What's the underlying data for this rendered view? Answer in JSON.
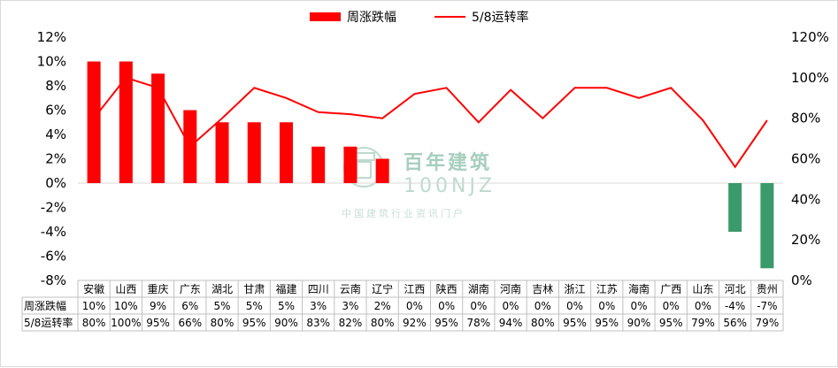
{
  "chart_data": {
    "type": "bar",
    "legend_position": "top-center",
    "grid": false,
    "categories": [
      "安徽",
      "山西",
      "重庆",
      "广东",
      "湖北",
      "甘肃",
      "福建",
      "四川",
      "云南",
      "辽宁",
      "江西",
      "陕西",
      "湖南",
      "河南",
      "吉林",
      "浙江",
      "江苏",
      "海南",
      "广西",
      "山东",
      "河北",
      "贵州"
    ],
    "series": [
      {
        "name": "周涨跌幅",
        "type": "bar",
        "axis": "left",
        "values": [
          10,
          10,
          9,
          6,
          5,
          5,
          5,
          3,
          3,
          2,
          0,
          0,
          0,
          0,
          0,
          0,
          0,
          0,
          0,
          0,
          -4,
          -7
        ],
        "table_labels": [
          "10%",
          "10%",
          "9%",
          "6%",
          "5%",
          "5%",
          "5%",
          "3%",
          "3%",
          "2%",
          "0%",
          "0%",
          "0%",
          "0%",
          "0%",
          "0%",
          "0%",
          "0%",
          "0%",
          "0%",
          "-4%",
          "-7%"
        ],
        "color_positive": "#ff0000",
        "color_negative": "#3a9a6a"
      },
      {
        "name": "5/8运转率",
        "type": "line",
        "axis": "right",
        "values": [
          80,
          100,
          95,
          66,
          80,
          95,
          90,
          83,
          82,
          80,
          92,
          95,
          78,
          94,
          80,
          95,
          95,
          90,
          95,
          79,
          56,
          79
        ],
        "table_labels": [
          "80%",
          "100%",
          "95%",
          "66%",
          "80%",
          "95%",
          "90%",
          "83%",
          "82%",
          "80%",
          "92%",
          "95%",
          "78%",
          "94%",
          "80%",
          "95%",
          "95%",
          "90%",
          "95%",
          "79%",
          "56%",
          "79%"
        ],
        "color": "#ff0000"
      }
    ],
    "ylim_left": [
      -8,
      12
    ],
    "yticks_left": [
      "12%",
      "10%",
      "8%",
      "6%",
      "4%",
      "2%",
      "0%",
      "-2%",
      "-4%",
      "-6%",
      "-8%"
    ],
    "ylim_right": [
      0,
      120
    ],
    "yticks_right": [
      "120%",
      "100%",
      "80%",
      "60%",
      "40%",
      "20%",
      "0%"
    ],
    "table_row_headers": [
      "周涨跌幅",
      "5/8运转率"
    ]
  },
  "watermark": {
    "line1": "百年建筑",
    "line2": "100NJZ",
    "line3": "中国建筑行业资讯门户"
  }
}
